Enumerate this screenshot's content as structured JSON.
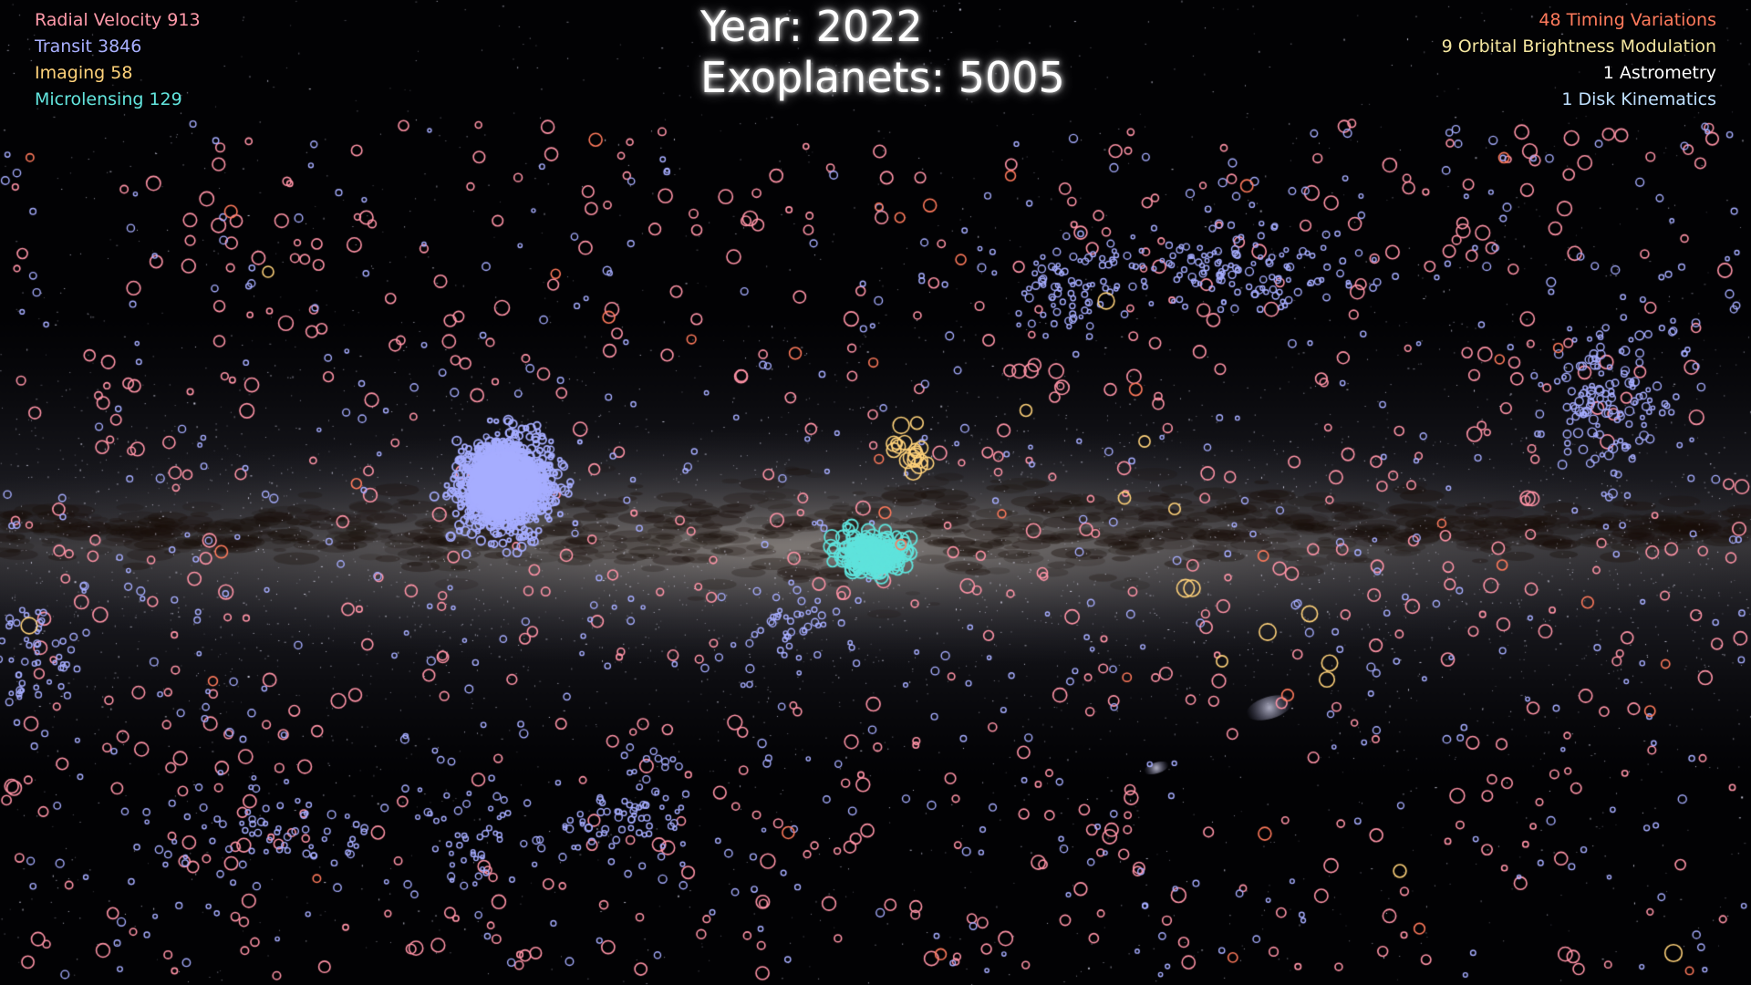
{
  "header": {
    "year_text": "Year: 2022",
    "exoplanets_text": "Exoplanets: 5005"
  },
  "legend_left": [
    {
      "text": "Radial Velocity 913",
      "method": "Radial Velocity",
      "count": 913,
      "color": "#ff9aaa"
    },
    {
      "text": "Transit 3846",
      "method": "Transit",
      "count": 3846,
      "color": "#a9b0ff"
    },
    {
      "text": "Imaging 58",
      "method": "Imaging",
      "count": 58,
      "color": "#ffd27a"
    },
    {
      "text": "Microlensing 129",
      "method": "Microlensing",
      "count": 129,
      "color": "#63e6df"
    }
  ],
  "legend_right": [
    {
      "text": "48 Timing Variations",
      "method": "Timing Variations",
      "count": 48,
      "color": "#ff7a5c"
    },
    {
      "text": "9 Orbital Brightness Modulation",
      "method": "Orbital Brightness Modulation",
      "count": 9,
      "color": "#f4e6a0"
    },
    {
      "text": "1 Astrometry",
      "method": "Astrometry",
      "count": 1,
      "color": "#ffffff"
    },
    {
      "text": "1 Disk Kinematics",
      "method": "Disk Kinematics",
      "count": 1,
      "color": "#bfe0ff"
    }
  ],
  "background": {
    "description_icon": "milky-way-panorama",
    "band_color": "#d9c9a8",
    "dust_color": "#2a1a10"
  }
}
